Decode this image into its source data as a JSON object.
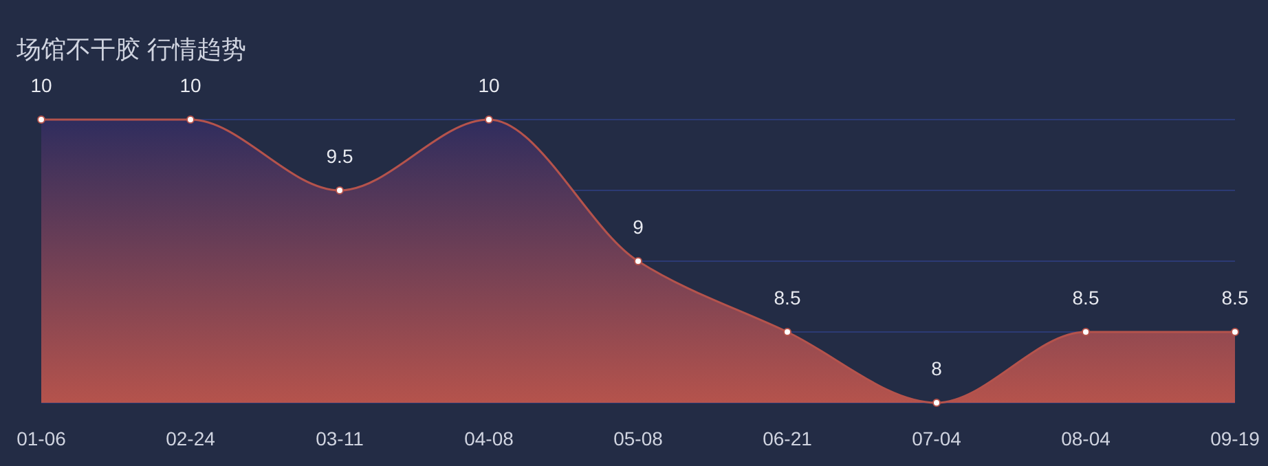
{
  "chart_data": {
    "type": "area",
    "title": "场馆不干胶 行情趋势",
    "categories": [
      "01-06",
      "02-24",
      "03-11",
      "04-08",
      "05-08",
      "06-21",
      "07-04",
      "08-04",
      "09-19"
    ],
    "series": [
      {
        "color": "#b5534c",
        "values": [
          10,
          10,
          9.5,
          10,
          9,
          8.5,
          8,
          8.5,
          8.5
        ]
      }
    ],
    "ylim": [
      8,
      10
    ],
    "yticks": [
      {
        "value": 8,
        "label": null
      },
      {
        "value": 8.5,
        "label": null
      },
      {
        "value": 9,
        "label": null
      },
      {
        "value": 9.5,
        "label": null
      },
      {
        "value": 10,
        "label": null
      }
    ],
    "grid": "y",
    "data_labels": true,
    "marker": "circle",
    "tick_labels": "x"
  }
}
